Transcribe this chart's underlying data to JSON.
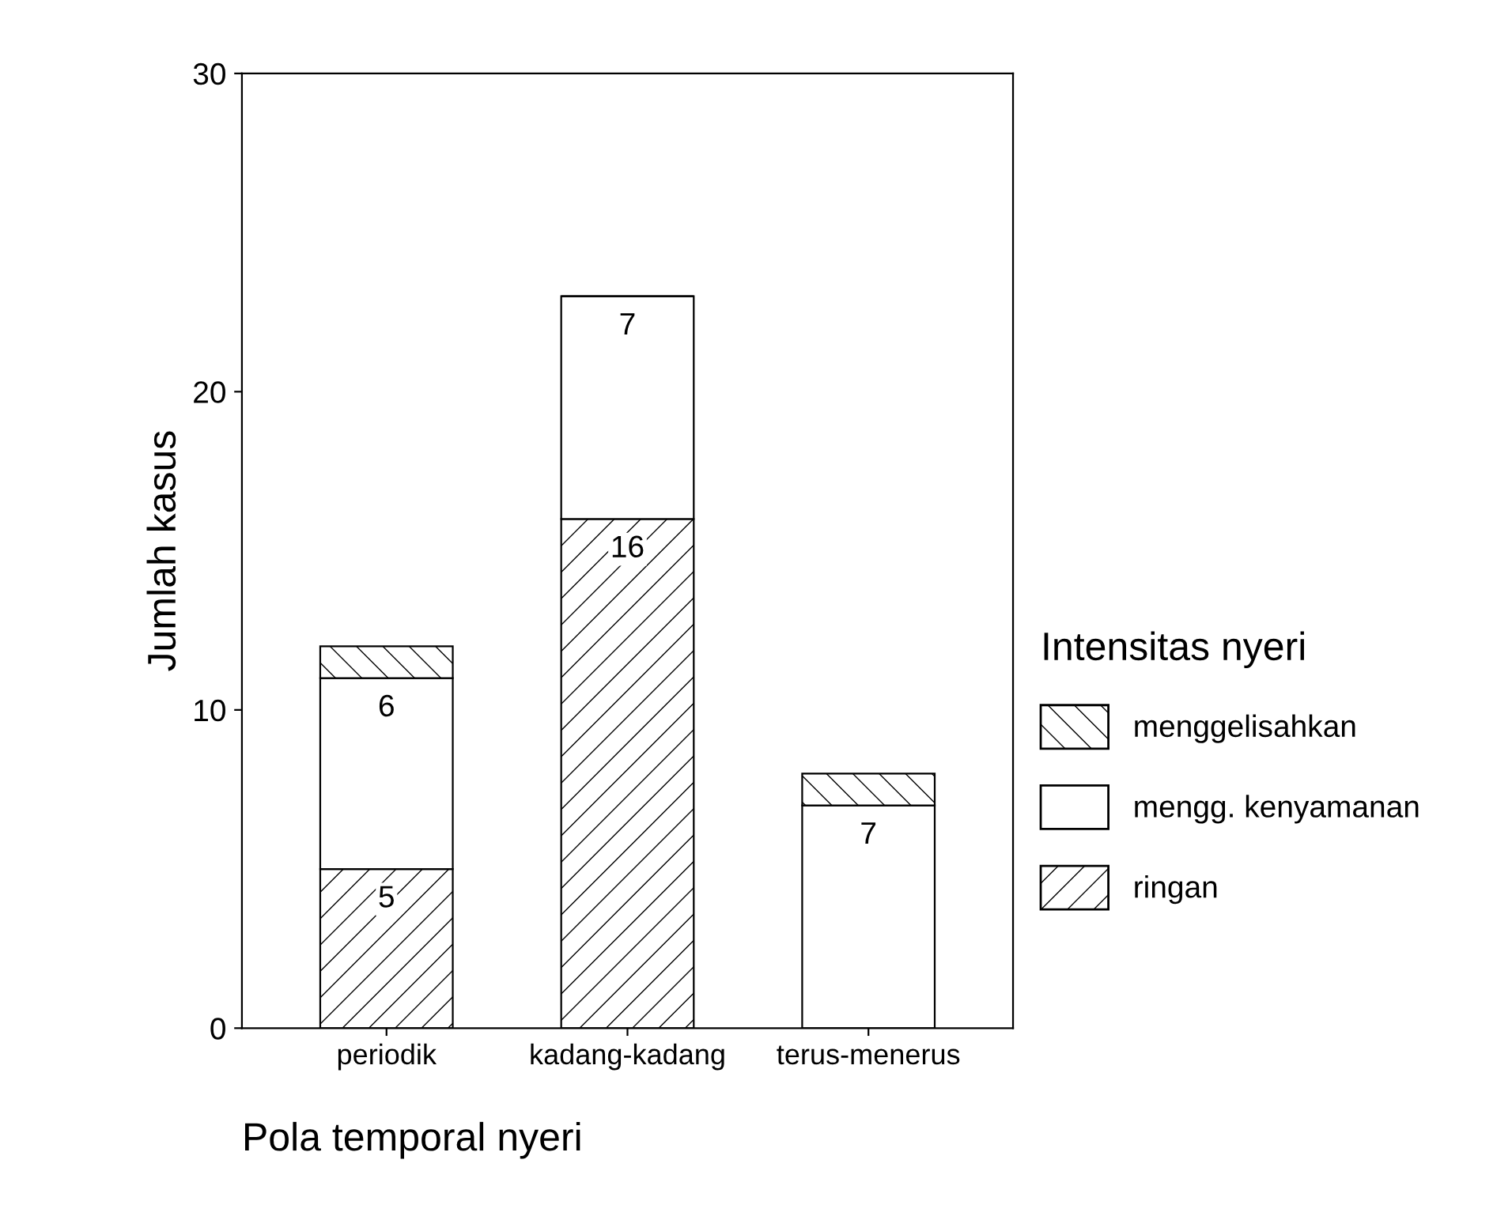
{
  "chart_data": {
    "type": "bar",
    "stacked": true,
    "xlabel": "Pola temporal nyeri",
    "ylabel": "Jumlah kasus",
    "legend_title": "Intensitas nyeri",
    "legend": "right",
    "categories": [
      "periodik",
      "kadang-kadang",
      "terus-menerus"
    ],
    "series": [
      {
        "name": "ringan",
        "color": "#000000",
        "values": [
          5,
          16,
          0
        ],
        "value_labels": [
          "5",
          "16",
          null
        ]
      },
      {
        "name": "mengg. kenyamanan",
        "color": "#ffffff",
        "values": [
          6,
          7,
          7
        ],
        "value_labels": [
          "6",
          "7",
          "7"
        ]
      },
      {
        "name": "menggelisahkan",
        "color": "#000000",
        "values": [
          1,
          0,
          1
        ],
        "value_labels": [
          null,
          null,
          null
        ]
      }
    ],
    "ylim": [
      0,
      30
    ],
    "yticks": [
      0,
      10,
      20,
      30
    ],
    "grid": false
  }
}
